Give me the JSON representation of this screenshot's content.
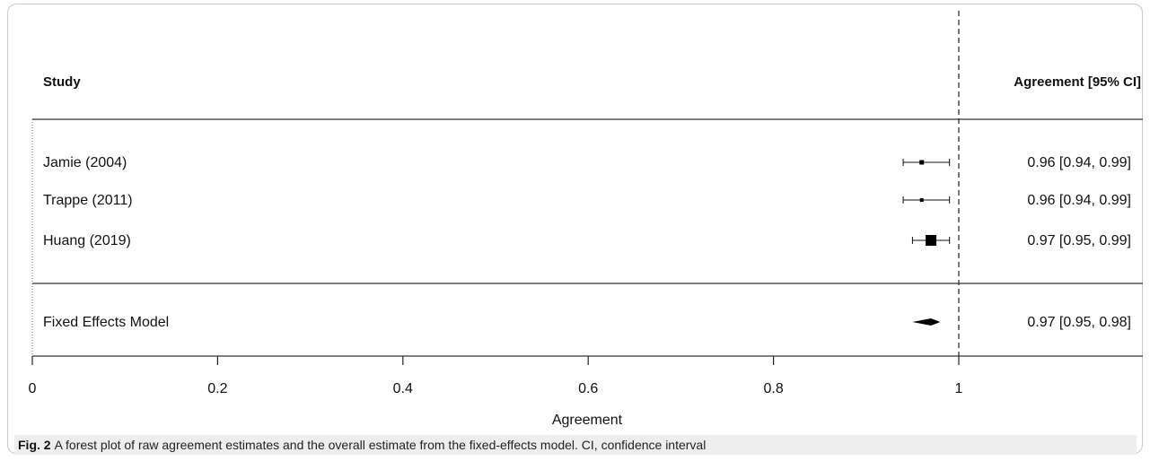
{
  "figure": {
    "label": "Fig. 2",
    "caption": "A forest plot of raw agreement estimates and the overall estimate from the fixed-effects model. CI, confidence interval"
  },
  "chart_data": {
    "type": "forest",
    "header_left": "Study",
    "header_right": "Agreement [95% CI]",
    "xlabel": "Agreement",
    "xlim": [
      0,
      1
    ],
    "ticks": [
      {
        "value": 0,
        "label": "0"
      },
      {
        "value": 0.2,
        "label": "0.2"
      },
      {
        "value": 0.4,
        "label": "0.4"
      },
      {
        "value": 0.6,
        "label": "0.6"
      },
      {
        "value": 0.8,
        "label": "0.8"
      },
      {
        "value": 1,
        "label": "1"
      }
    ],
    "reference_line": 1,
    "studies": [
      {
        "name": "Jamie (2004)",
        "estimate": 0.96,
        "lower": 0.94,
        "upper": 0.99,
        "ci_text": "0.96 [0.94, 0.99]",
        "weight": "small"
      },
      {
        "name": "Trappe (2011)",
        "estimate": 0.96,
        "lower": 0.94,
        "upper": 0.99,
        "ci_text": "0.96 [0.94, 0.99]",
        "weight": "smallest"
      },
      {
        "name": "Huang (2019)",
        "estimate": 0.97,
        "lower": 0.95,
        "upper": 0.99,
        "ci_text": "0.97 [0.95, 0.99]",
        "weight": "large"
      }
    ],
    "summary": {
      "name": "Fixed Effects Model",
      "estimate": 0.97,
      "lower": 0.95,
      "upper": 0.98,
      "ci_text": "0.97 [0.95, 0.98]"
    }
  }
}
